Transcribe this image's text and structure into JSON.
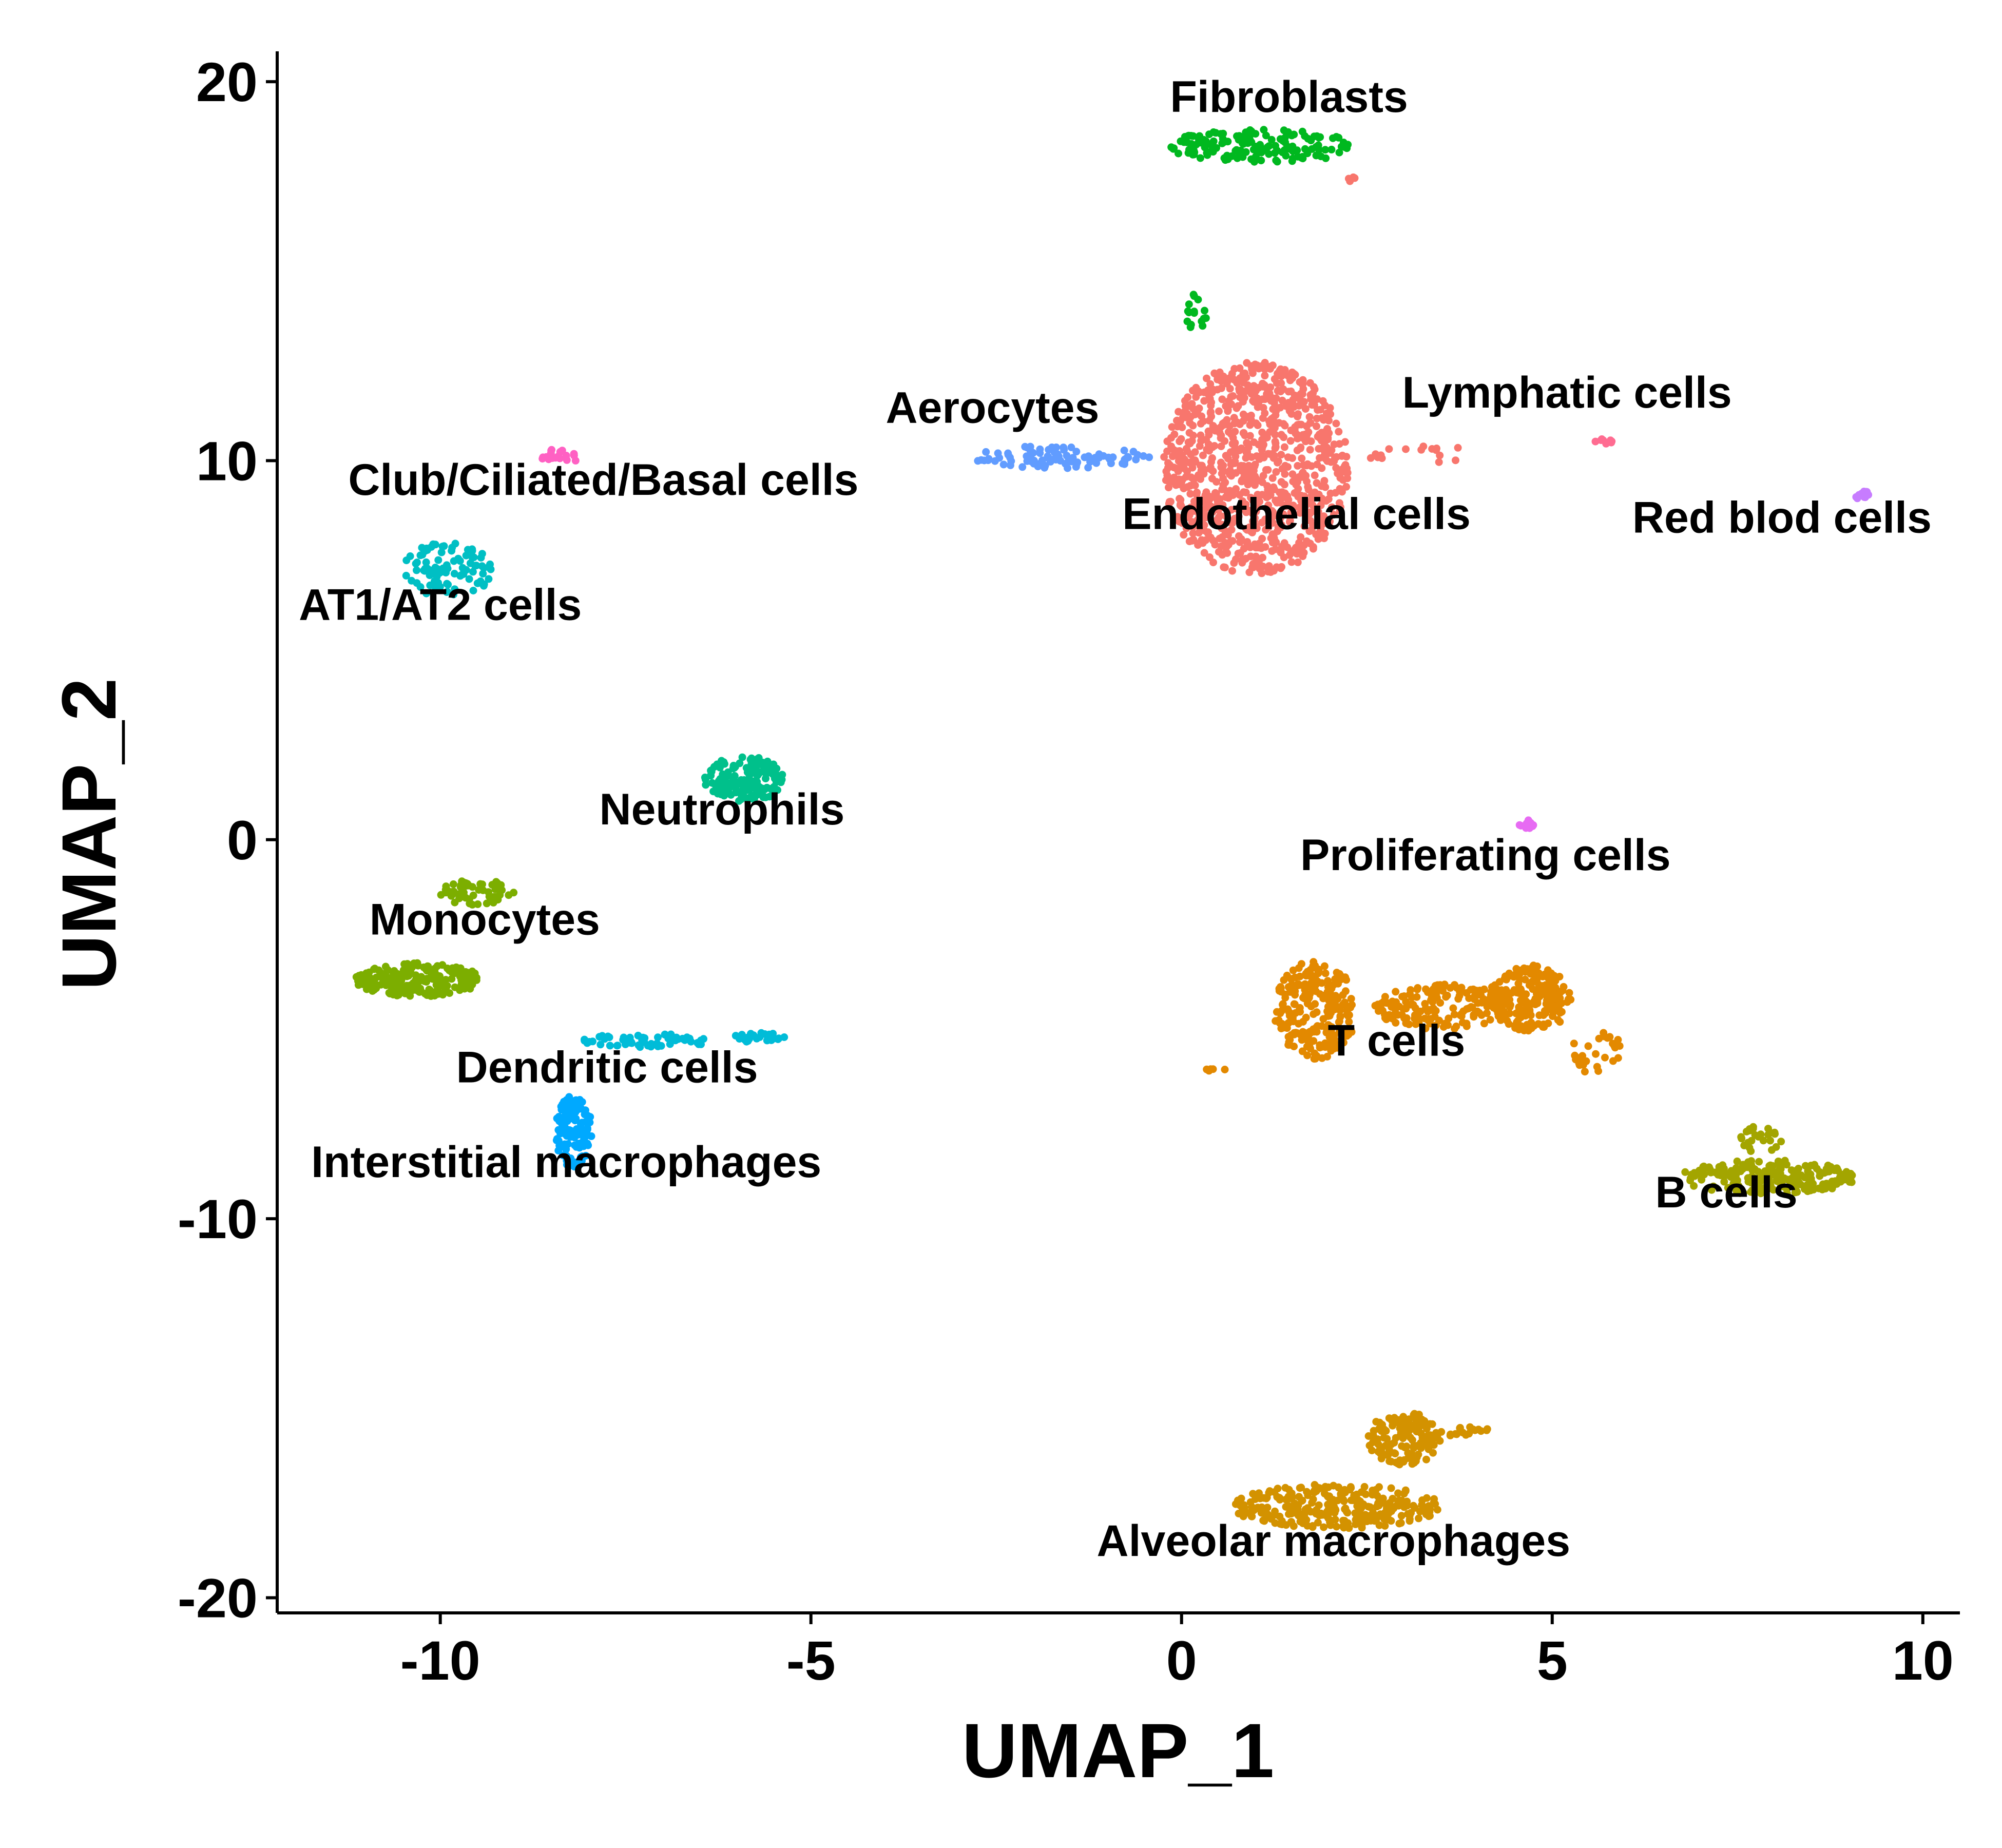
{
  "chart_data": {
    "type": "scatter",
    "title": "",
    "xlabel": "UMAP_1",
    "ylabel": "UMAP_2",
    "xlim": [
      -12.2,
      10.5
    ],
    "ylim": [
      -20.4,
      20.8
    ],
    "x_ticks": [
      -10,
      -5,
      0,
      5,
      10
    ],
    "y_ticks": [
      20,
      10,
      0,
      -10,
      -20
    ],
    "x_tick_labels": [
      "-10",
      "-5",
      "0",
      "5",
      "10"
    ],
    "y_tick_labels": [
      "20",
      "10",
      "0",
      "-10",
      "-20"
    ],
    "grid": false,
    "legend": "none",
    "clusters": [
      {
        "label": "Fibroblasts",
        "color": "#00B81F",
        "label_pos": [
          1.45,
          19.2
        ],
        "blobs": [
          {
            "cx": 1.1,
            "cy": 18.3,
            "rx": 1.3,
            "ry": 0.45,
            "n": 160
          },
          {
            "cx": 0.2,
            "cy": 13.9,
            "rx": 0.15,
            "ry": 0.5,
            "n": 16
          }
        ]
      },
      {
        "label": "Aerocytes",
        "color": "#619CFF",
        "label_pos": [
          -2.55,
          11.0
        ],
        "blobs": [
          {
            "cx": -1.6,
            "cy": 10.1,
            "rx": 1.3,
            "ry": 0.3,
            "n": 90
          }
        ]
      },
      {
        "label": "Endothelial cells",
        "color": "#F8766D",
        "label_pos": [
          1.55,
          8.2
        ],
        "blobs": [
          {
            "cx": 1.0,
            "cy": 9.8,
            "rx": 1.25,
            "ry": 2.8,
            "n": 950
          },
          {
            "cx": 3.1,
            "cy": 10.2,
            "rx": 0.8,
            "ry": 0.3,
            "n": 16
          },
          {
            "cx": 2.3,
            "cy": 17.4,
            "rx": 0.05,
            "ry": 0.2,
            "n": 4
          }
        ]
      },
      {
        "label": "Lymphatic cells",
        "color": "#FF6C91",
        "label_pos": [
          5.2,
          11.4
        ],
        "blobs": [
          {
            "cx": 5.7,
            "cy": 10.5,
            "rx": 0.12,
            "ry": 0.08,
            "n": 8
          }
        ]
      },
      {
        "label": "Red blod cells",
        "color": "#C77CFF",
        "label_pos": [
          8.1,
          8.1
        ],
        "blobs": [
          {
            "cx": 9.15,
            "cy": 9.1,
            "rx": 0.15,
            "ry": 0.12,
            "n": 12
          }
        ]
      },
      {
        "label": "Club/Ciliated/Basal cells",
        "color": "#FF61C3",
        "label_pos": [
          -7.8,
          9.1
        ],
        "blobs": [
          {
            "cx": -8.4,
            "cy": 10.1,
            "rx": 0.3,
            "ry": 0.2,
            "n": 18
          }
        ]
      },
      {
        "label": "AT1/AT2 cells",
        "color": "#00BFC4",
        "label_pos": [
          -10.0,
          5.8
        ],
        "blobs": [
          {
            "cx": -9.9,
            "cy": 7.1,
            "rx": 0.6,
            "ry": 0.75,
            "n": 95
          }
        ]
      },
      {
        "label": "Neutrophils",
        "color": "#00C08B",
        "label_pos": [
          -6.2,
          0.4
        ],
        "blobs": [
          {
            "cx": -5.9,
            "cy": 1.6,
            "rx": 0.55,
            "ry": 0.6,
            "n": 160
          }
        ]
      },
      {
        "label": "Proliferating cells",
        "color": "#E76BF3",
        "label_pos": [
          4.1,
          -0.8
        ],
        "blobs": [
          {
            "cx": 4.7,
            "cy": 0.4,
            "rx": 0.2,
            "ry": 0.15,
            "n": 10
          }
        ]
      },
      {
        "label": "Monocytes",
        "color": "#7CAE00",
        "label_pos": [
          -9.4,
          -2.5
        ],
        "blobs": [
          {
            "cx": -10.3,
            "cy": -3.7,
            "rx": 0.85,
            "ry": 0.45,
            "n": 210
          },
          {
            "cx": -9.5,
            "cy": -1.4,
            "rx": 0.5,
            "ry": 0.35,
            "n": 60
          }
        ]
      },
      {
        "label": "Dendritic cells",
        "color": "#00BCD8",
        "label_pos": [
          -7.75,
          -6.4
        ],
        "blobs": [
          {
            "cx": -7.2,
            "cy": -5.3,
            "rx": 0.9,
            "ry": 0.18,
            "n": 60
          },
          {
            "cx": -5.7,
            "cy": -5.2,
            "rx": 0.35,
            "ry": 0.15,
            "n": 25
          }
        ]
      },
      {
        "label": "Interstitial macrophages",
        "color": "#00A9FF",
        "label_pos": [
          -8.3,
          -8.9
        ],
        "blobs": [
          {
            "cx": -8.2,
            "cy": -7.7,
            "rx": 0.25,
            "ry": 0.95,
            "n": 110
          }
        ]
      },
      {
        "label": "T cells",
        "color": "#E38900",
        "label_pos": [
          2.9,
          -5.7
        ],
        "blobs": [
          {
            "cx": 1.8,
            "cy": -4.5,
            "rx": 0.55,
            "ry": 1.3,
            "n": 230
          },
          {
            "cx": 3.5,
            "cy": -4.4,
            "rx": 0.9,
            "ry": 0.6,
            "n": 160
          },
          {
            "cx": 4.7,
            "cy": -4.2,
            "rx": 0.55,
            "ry": 0.9,
            "n": 210
          },
          {
            "cx": 5.6,
            "cy": -5.6,
            "rx": 0.35,
            "ry": 0.6,
            "n": 30
          },
          {
            "cx": 0.45,
            "cy": -6.1,
            "rx": 0.2,
            "ry": 0.05,
            "n": 6
          }
        ]
      },
      {
        "label": "B cells",
        "color": "#A3A500",
        "label_pos": [
          7.35,
          -9.7
        ],
        "blobs": [
          {
            "cx": 7.9,
            "cy": -8.9,
            "rx": 1.2,
            "ry": 0.45,
            "n": 230
          },
          {
            "cx": 7.8,
            "cy": -7.9,
            "rx": 0.3,
            "ry": 0.4,
            "n": 25
          }
        ]
      },
      {
        "label": "Alveolar macrophages",
        "color": "#D39200",
        "label_pos": [
          2.05,
          -18.9
        ],
        "blobs": [
          {
            "cx": 2.1,
            "cy": -17.6,
            "rx": 1.4,
            "ry": 0.6,
            "n": 280
          },
          {
            "cx": 3.0,
            "cy": -15.8,
            "rx": 0.5,
            "ry": 0.7,
            "n": 130
          },
          {
            "cx": 3.8,
            "cy": -15.6,
            "rx": 0.35,
            "ry": 0.15,
            "n": 18
          }
        ]
      }
    ]
  }
}
